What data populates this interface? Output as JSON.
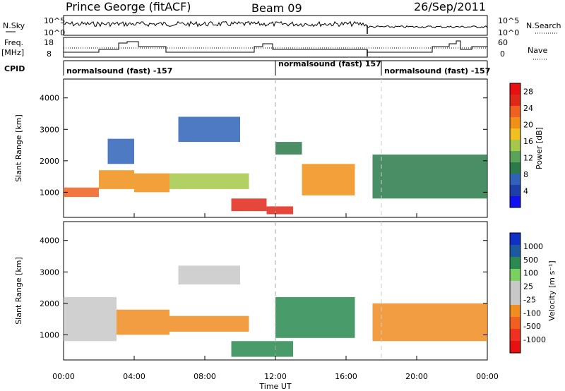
{
  "header": {
    "station": "Prince George (fitACF)",
    "beam": "Beam 09",
    "date": "26/Sep/2011"
  },
  "panels": {
    "nsky_label": "N.Sky",
    "nsky_ticks": [
      "10^5",
      "10^0"
    ],
    "nsearch_label": "N.Search",
    "nsearch_ticks": [
      "10^5",
      "10^0"
    ],
    "freq_label": "Freq.",
    "freq_unit": "[MHz]",
    "freq_ticks": [
      "18",
      "8"
    ],
    "nave_label": "Nave",
    "nave_ticks": [
      "60",
      "0"
    ],
    "cpid_label": "CPID",
    "cpid_segments": [
      {
        "label": "normalsound (fast) -157",
        "start_hour": 0
      },
      {
        "label": "normalsound (fast) 157",
        "start_hour": 12
      },
      {
        "label": "normalsound (fast) -157",
        "start_hour": 18
      }
    ]
  },
  "colors": {
    "power": [
      "#1010f0",
      "#1c3fa8",
      "#2f62b8",
      "#2a7a4a",
      "#59a45a",
      "#a6c84a",
      "#f0c020",
      "#f09018",
      "#f06020",
      "#e02818",
      "#e81010"
    ],
    "velocity": [
      "#e81010",
      "#f03020",
      "#f06020",
      "#f08c20",
      "#c8c8c8",
      "#c8c8c8",
      "#7ad060",
      "#2a8a50",
      "#1c5aa0",
      "#1030c8"
    ]
  },
  "chart_data": [
    {
      "type": "heatmap",
      "title": "",
      "xlabel": "Time UT",
      "ylabel": "Slant Range [km]",
      "xlim": [
        0,
        24
      ],
      "ylim": [
        200,
        4600
      ],
      "xticks": [
        "00:00",
        "04:00",
        "08:00",
        "12:00",
        "16:00",
        "20:00",
        "00:00"
      ],
      "yticks": [
        1000,
        2000,
        3000,
        4000
      ],
      "colorbar": {
        "label": "Power [dB]",
        "ticks": [
          4,
          8,
          12,
          16,
          20,
          24,
          28
        ],
        "range": [
          0,
          30
        ]
      },
      "regions": [
        {
          "t": [
            0.0,
            2.0
          ],
          "r": [
            850,
            1150
          ],
          "value": 24
        },
        {
          "t": [
            2.0,
            4.0
          ],
          "r": [
            1100,
            1700
          ],
          "value": 22
        },
        {
          "t": [
            4.0,
            6.0
          ],
          "r": [
            1000,
            1600
          ],
          "value": 20
        },
        {
          "t": [
            6.0,
            10.5
          ],
          "r": [
            1100,
            1600
          ],
          "value": 16
        },
        {
          "t": [
            2.5,
            4.0
          ],
          "r": [
            1900,
            2700
          ],
          "value": 6
        },
        {
          "t": [
            6.5,
            10.0
          ],
          "r": [
            2600,
            3400
          ],
          "value": 6
        },
        {
          "t": [
            9.5,
            11.5
          ],
          "r": [
            400,
            800
          ],
          "value": 26
        },
        {
          "t": [
            11.5,
            13.0
          ],
          "r": [
            300,
            550
          ],
          "value": 27
        },
        {
          "t": [
            13.5,
            16.5
          ],
          "r": [
            900,
            1900
          ],
          "value": 22
        },
        {
          "t": [
            12.0,
            13.5
          ],
          "r": [
            2200,
            2600
          ],
          "value": 8
        },
        {
          "t": [
            17.5,
            24.0
          ],
          "r": [
            800,
            2200
          ],
          "value": 10
        }
      ]
    },
    {
      "type": "heatmap",
      "title": "",
      "xlabel": "Time UT",
      "ylabel": "Slant Range [km]",
      "xlim": [
        0,
        24
      ],
      "ylim": [
        200,
        4600
      ],
      "xticks": [
        "00:00",
        "04:00",
        "08:00",
        "12:00",
        "16:00",
        "20:00",
        "00:00"
      ],
      "yticks": [
        1000,
        2000,
        3000,
        4000
      ],
      "colorbar": {
        "label": "Velocity [m s⁻¹]",
        "ticks": [
          "1000",
          "500",
          "100",
          "25",
          "-25",
          "-100",
          "-500",
          "-1000"
        ]
      },
      "regions": [
        {
          "t": [
            0.0,
            3.0
          ],
          "r": [
            800,
            2200
          ],
          "value": 0
        },
        {
          "t": [
            3.0,
            6.0
          ],
          "r": [
            1000,
            1800
          ],
          "value": -300
        },
        {
          "t": [
            6.0,
            10.5
          ],
          "r": [
            1100,
            1600
          ],
          "value": -200
        },
        {
          "t": [
            6.5,
            10.0
          ],
          "r": [
            2600,
            3200
          ],
          "value": 0
        },
        {
          "t": [
            9.5,
            13.0
          ],
          "r": [
            300,
            800
          ],
          "value": 200
        },
        {
          "t": [
            12.0,
            16.5
          ],
          "r": [
            900,
            2200
          ],
          "value": 300
        },
        {
          "t": [
            17.5,
            24.0
          ],
          "r": [
            800,
            2000
          ],
          "value": -200
        }
      ]
    }
  ]
}
